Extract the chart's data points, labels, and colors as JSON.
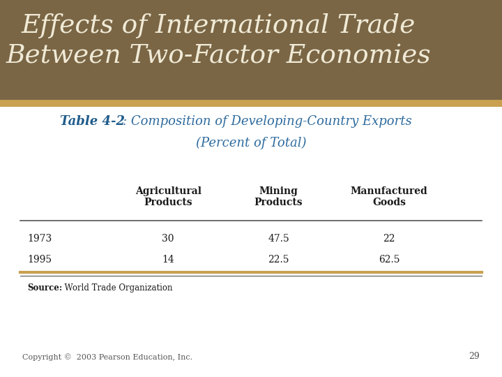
{
  "main_title_line1": "Effects of International Trade",
  "main_title_line2": "Between Two-Factor Economies",
  "subtitle_bold": "Table 4-2",
  "subtitle_rest": ": Composition of Developing-Country Exports",
  "subtitle_rest2": "(Percent of Total)",
  "header_row": [
    "Agricultural\nProducts",
    "Mining\nProducts",
    "Manufactured\nGoods"
  ],
  "years": [
    "1973",
    "1995"
  ],
  "data": [
    [
      "30",
      "47.5",
      "22"
    ],
    [
      "14",
      "22.5",
      "62.5"
    ]
  ],
  "source_bold": "Source:",
  "source_normal": "  World Trade Organization",
  "copyright_text": "Copyright ©  2003 Pearson Education, Inc.",
  "page_number": "29",
  "bg_color": "#FFFFFF",
  "header_bg": "#7A6645",
  "title_color_cream": "#F0EAD6",
  "subtitle_bold_color": "#1F5C8B",
  "subtitle_rest_color": "#2E6B9E",
  "table_text_color": "#1a1a1a",
  "source_text_color": "#1a1a1a",
  "copyright_color": "#555555",
  "gold_bar_color": "#C8A050",
  "table_line_color": "#555555"
}
